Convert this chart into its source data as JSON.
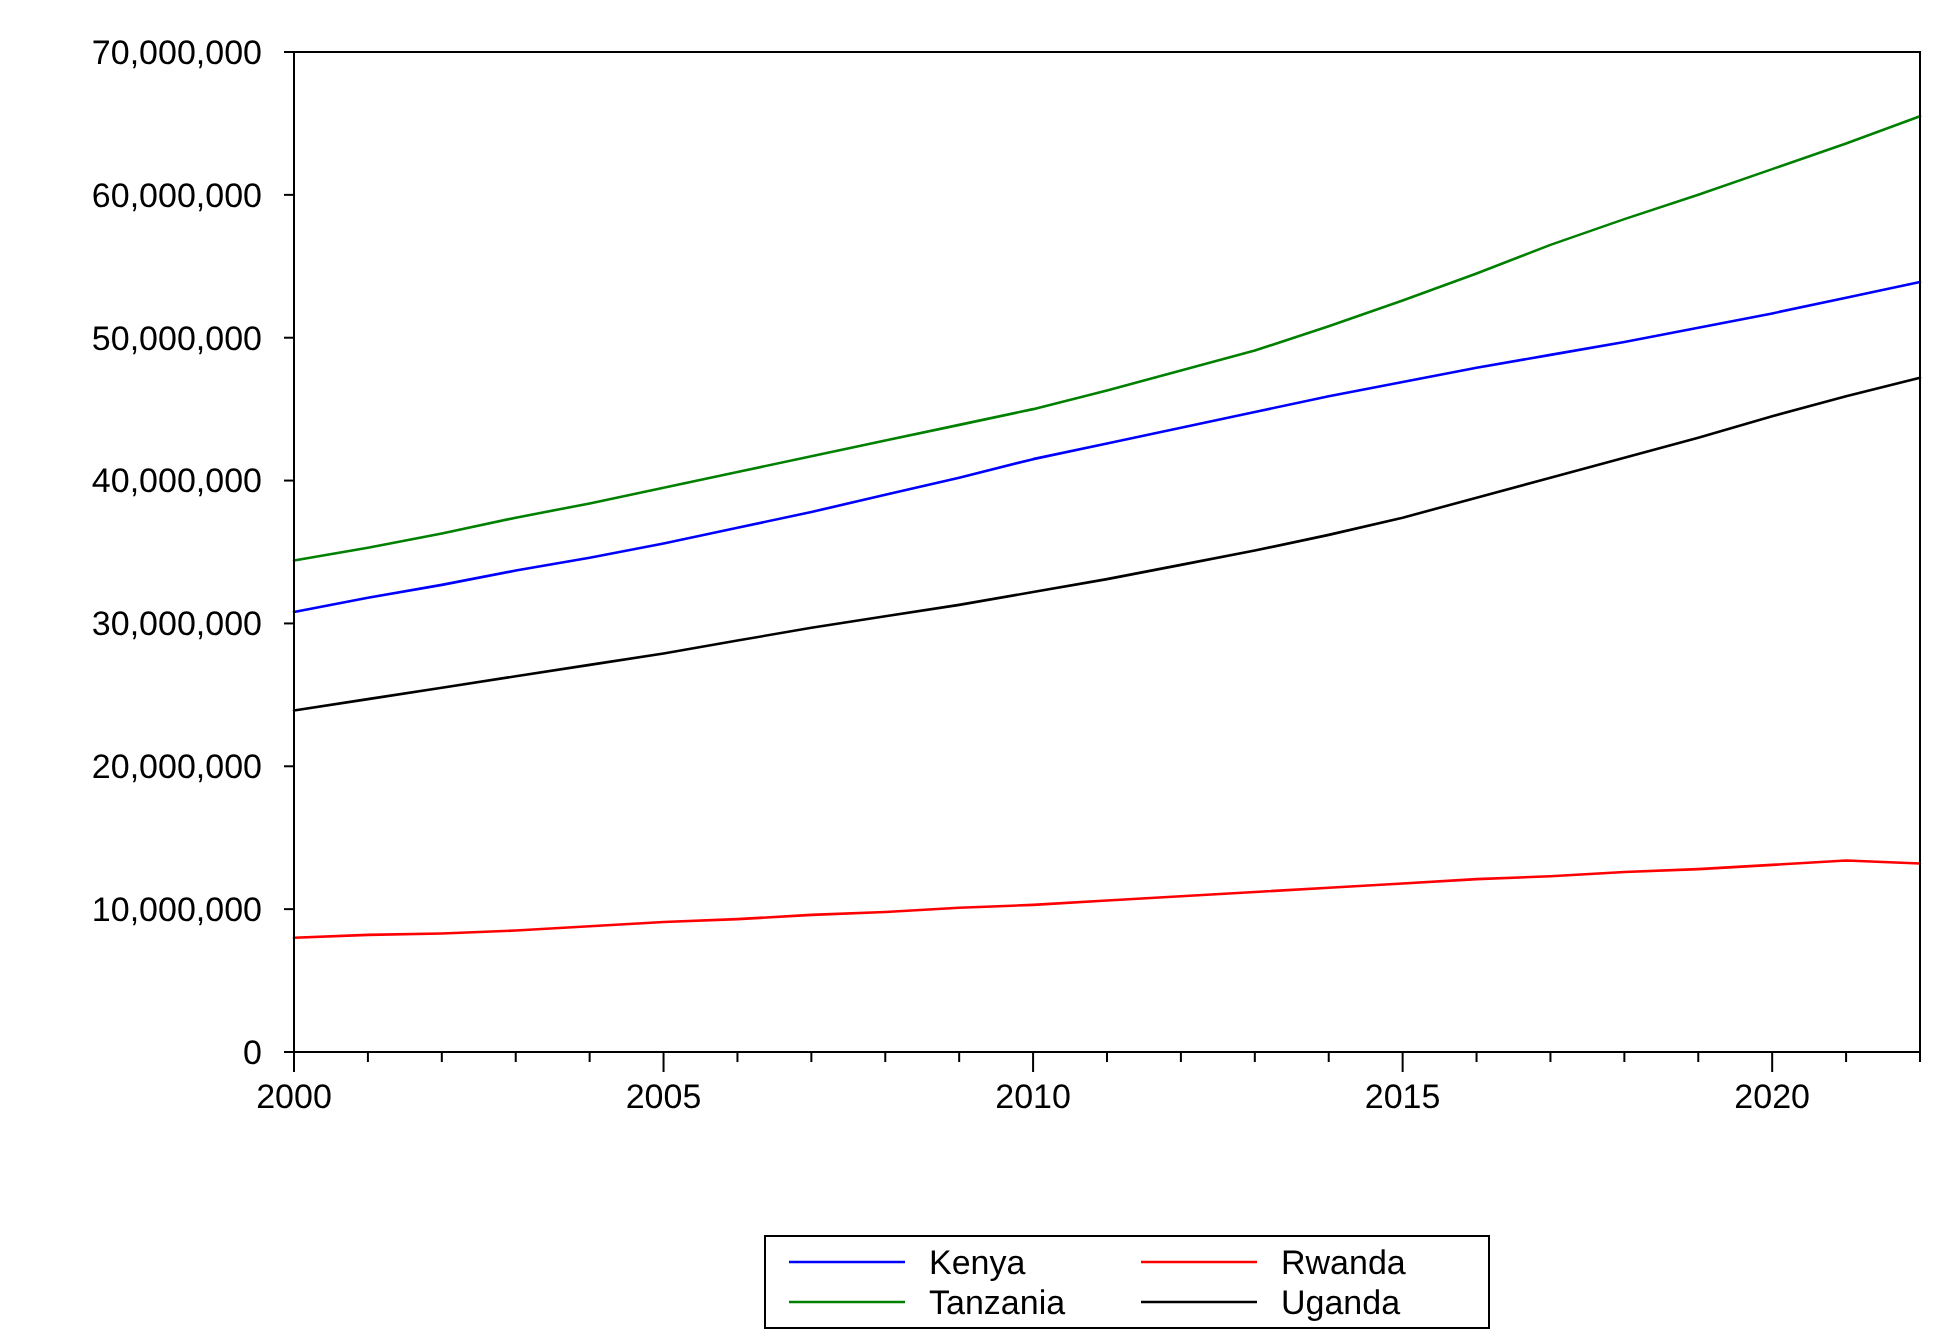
{
  "chart_data": {
    "type": "line",
    "x": [
      2000,
      2001,
      2002,
      2003,
      2004,
      2005,
      2006,
      2007,
      2008,
      2009,
      2010,
      2011,
      2012,
      2013,
      2014,
      2015,
      2016,
      2017,
      2018,
      2019,
      2020,
      2021,
      2022
    ],
    "series": [
      {
        "name": "Kenya",
        "color": "#0000ff",
        "values": [
          30800000,
          31800000,
          32700000,
          33700000,
          34600000,
          35600000,
          36700000,
          37800000,
          39000000,
          40200000,
          41500000,
          42600000,
          43700000,
          44800000,
          45900000,
          46900000,
          47900000,
          48800000,
          49700000,
          50700000,
          51700000,
          52800000,
          53900000
        ]
      },
      {
        "name": "Rwanda",
        "color": "#ff0000",
        "values": [
          8000000,
          8200000,
          8300000,
          8500000,
          8800000,
          9100000,
          9300000,
          9600000,
          9800000,
          10100000,
          10300000,
          10600000,
          10900000,
          11200000,
          11500000,
          11800000,
          12100000,
          12300000,
          12600000,
          12800000,
          13100000,
          13400000,
          13200000
        ]
      },
      {
        "name": "Tanzania",
        "color": "#008000",
        "values": [
          34400000,
          35300000,
          36300000,
          37400000,
          38400000,
          39500000,
          40600000,
          41700000,
          42800000,
          43900000,
          45000000,
          46300000,
          47700000,
          49100000,
          50800000,
          52600000,
          54500000,
          56500000,
          58300000,
          60000000,
          61800000,
          63600000,
          65500000
        ]
      },
      {
        "name": "Uganda",
        "color": "#000000",
        "values": [
          23900000,
          24700000,
          25500000,
          26300000,
          27100000,
          27900000,
          28800000,
          29700000,
          30500000,
          31300000,
          32200000,
          33100000,
          34100000,
          35100000,
          36200000,
          37400000,
          38800000,
          40200000,
          41600000,
          43000000,
          44500000,
          45900000,
          47200000
        ]
      }
    ],
    "xlim": [
      2000,
      2022
    ],
    "xticks": [
      2000,
      {
        "value": 2001,
        "label": null
      },
      {
        "value": 2002,
        "label": null
      },
      {
        "value": 2003,
        "label": null
      },
      {
        "value": 2004,
        "label": null
      },
      2005,
      {
        "value": 2006,
        "label": null
      },
      {
        "value": 2007,
        "label": null
      },
      {
        "value": 2008,
        "label": null
      },
      {
        "value": 2009,
        "label": null
      },
      2010,
      {
        "value": 2011,
        "label": null
      },
      {
        "value": 2012,
        "label": null
      },
      {
        "value": 2013,
        "label": null
      },
      {
        "value": 2014,
        "label": null
      },
      2015,
      {
        "value": 2016,
        "label": null
      },
      {
        "value": 2017,
        "label": null
      },
      {
        "value": 2018,
        "label": null
      },
      {
        "value": 2019,
        "label": null
      },
      2020,
      {
        "value": 2021,
        "label": null
      },
      {
        "value": 2022,
        "label": null
      }
    ],
    "ylim": [
      0,
      70000000
    ],
    "yticks": [
      0,
      {
        "value": 10000000,
        "label": "10,000,000"
      },
      {
        "value": 20000000,
        "label": "20,000,000"
      },
      {
        "value": 30000000,
        "label": "30,000,000"
      },
      {
        "value": 40000000,
        "label": "40,000,000"
      },
      {
        "value": 50000000,
        "label": "50,000,000"
      },
      {
        "value": 60000000,
        "label": "60,000,000"
      },
      {
        "value": 70000000,
        "label": "70,000,000"
      }
    ],
    "grid": false,
    "legend": "bottom",
    "marker": "none",
    "line_style": "solid"
  }
}
